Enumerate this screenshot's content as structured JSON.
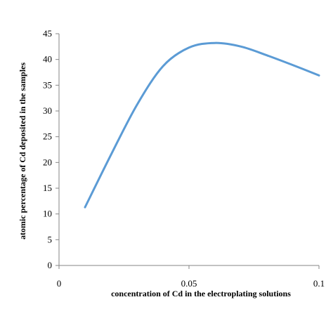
{
  "chart_data": {
    "type": "line",
    "title": "",
    "xlabel": "concentration of Cd in the electroplating solutions",
    "ylabel": "atomic percentage of Cd deposited in the samples",
    "xlim": [
      0,
      0.1
    ],
    "ylim": [
      0,
      45
    ],
    "x_ticks": [
      0,
      0.05,
      0.1
    ],
    "x_tick_labels": [
      "0",
      "0.05",
      "0.1"
    ],
    "y_ticks": [
      0,
      5,
      10,
      15,
      20,
      25,
      30,
      35,
      40,
      45
    ],
    "y_tick_labels": [
      "0",
      "5",
      "10",
      "15",
      "20",
      "25",
      "30",
      "35",
      "40",
      "45"
    ],
    "grid": false,
    "legend": "none",
    "line_color": "#5b9bd5",
    "series": [
      {
        "x": [
          0.01,
          0.02,
          0.03,
          0.04,
          0.05,
          0.06,
          0.07,
          0.08,
          0.09,
          0.1
        ],
        "y": [
          11.3,
          21.5,
          31.2,
          38.7,
          42.3,
          43.2,
          42.5,
          40.8,
          38.9,
          36.9
        ]
      }
    ]
  }
}
